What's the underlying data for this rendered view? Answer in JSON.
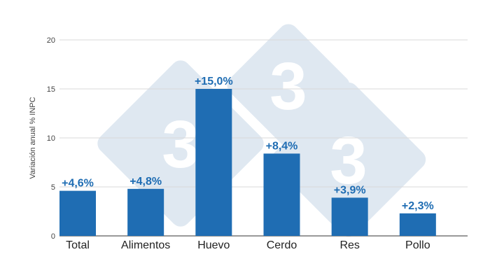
{
  "watermark": {
    "glyph": "3"
  },
  "chart_data": {
    "type": "bar",
    "categories": [
      "Total",
      "Alimentos",
      "Huevo",
      "Cerdo",
      "Res",
      "Pollo"
    ],
    "values": [
      4.6,
      4.8,
      15.0,
      8.4,
      3.9,
      2.3
    ],
    "data_labels": [
      "+4,6%",
      "+4,8%",
      "+15,0%",
      "+8,4%",
      "+3,9%",
      "+2,3%"
    ],
    "title": "",
    "xlabel": "",
    "ylabel": "Variación anual % INPC",
    "ylim": [
      0,
      20
    ],
    "yticks": [
      0,
      5,
      10,
      15,
      20
    ],
    "grid": true,
    "bar_color": "#1f6db3",
    "label_color": "#1f6db3"
  }
}
